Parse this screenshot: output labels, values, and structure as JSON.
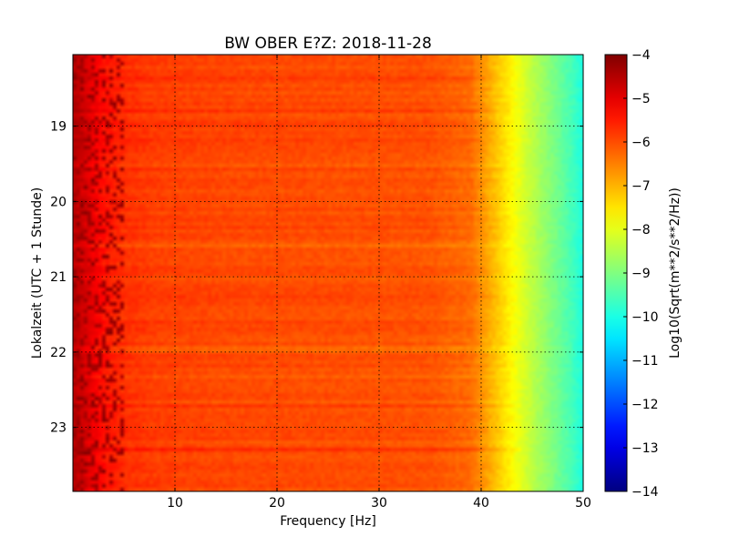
{
  "chart_data": {
    "type": "heatmap",
    "title": "BW OBER E?Z: 2018-11-28",
    "xlabel": "Frequency [Hz]",
    "ylabel": "Lokalzeit (UTC + 1 Stunde)",
    "xlim": [
      0,
      50
    ],
    "ylim": [
      18.05,
      23.85
    ],
    "x_ticks": [
      10,
      20,
      30,
      40,
      50
    ],
    "x_tick_labels": [
      "10",
      "20",
      "30",
      "40",
      "50"
    ],
    "y_ticks": [
      19,
      20,
      21,
      22,
      23
    ],
    "y_tick_labels": [
      "19",
      "20",
      "21",
      "22",
      "23"
    ],
    "y_inverted": true,
    "grid": true,
    "colormap": "jet",
    "colorbar": {
      "label": "Log10(Sqrt(m**2/s**2/Hz))",
      "range": [
        -14,
        -4
      ],
      "ticks": [
        -4,
        -5,
        -6,
        -7,
        -8,
        -9,
        -10,
        -11,
        -12,
        -13,
        -14
      ],
      "tick_labels": [
        "−4",
        "−5",
        "−6",
        "−7",
        "−8",
        "−9",
        "−10",
        "−11",
        "−12",
        "−13",
        "−14"
      ]
    },
    "spectral_profile": {
      "frequency_hz": [
        0,
        1,
        2,
        3,
        5,
        8,
        15,
        25,
        35,
        39,
        41,
        43,
        45,
        47,
        49,
        50
      ],
      "log_psd": [
        -4.5,
        -4.8,
        -5.1,
        -5.4,
        -5.7,
        -5.85,
        -5.95,
        -6.0,
        -6.05,
        -6.3,
        -7.0,
        -7.7,
        -8.4,
        -9.0,
        -9.6,
        -10.0
      ]
    },
    "stripe_values_at_0_to_5hz": [
      -4.45,
      -4.7
    ],
    "row_variation_db": 0.35,
    "noise": 0.12
  }
}
